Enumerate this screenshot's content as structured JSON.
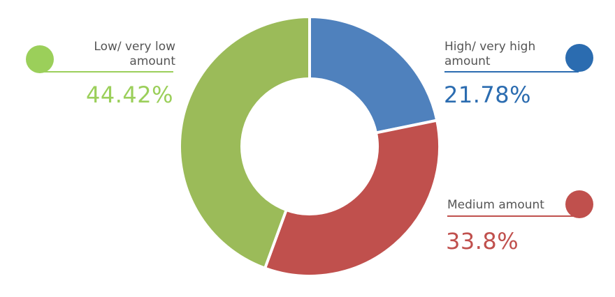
{
  "chart_data": {
    "type": "pie",
    "donut": true,
    "slices": [
      {
        "key": "high",
        "label_lines": [
          "High/ very high",
          "amount"
        ],
        "value": 21.78,
        "display": "21.78%",
        "color": "#4f81bd",
        "accent": "#2b6cb0"
      },
      {
        "key": "medium",
        "label_lines": [
          "Medium amount"
        ],
        "value": 33.8,
        "display": "33.8%",
        "color": "#c0504d",
        "accent": "#c0504d"
      },
      {
        "key": "low",
        "label_lines": [
          "Low/ very low",
          "amount"
        ],
        "value": 44.42,
        "display": "44.42%",
        "color": "#9bbb59",
        "accent": "#9bcf5a"
      }
    ]
  }
}
